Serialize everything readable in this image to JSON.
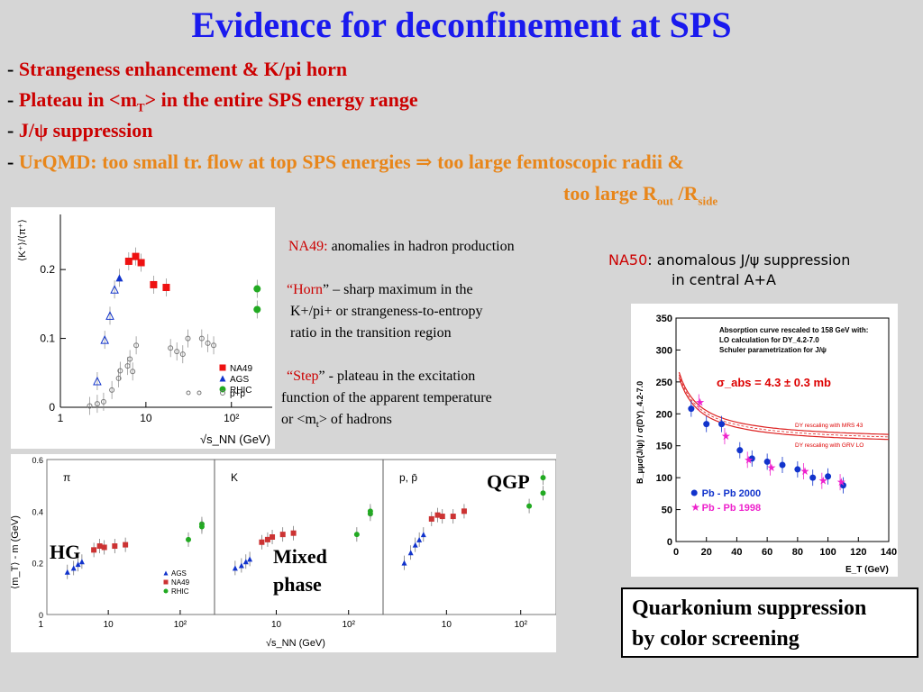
{
  "title": "Evidence for deconfinement at SPS",
  "bullets": {
    "b1_dash": "- ",
    "b1": "Strangeness enhancement & K/pi horn",
    "b2_dash": "- ",
    "b2_pre": "Plateau in <m",
    "b2_sub": "T",
    "b2_post": "> in the entire SPS energy range",
    "b3_dash": "- ",
    "b3": "J/ψ suppression",
    "b4_dash": "- ",
    "b4_pre": "UrQMD: too small tr. flow at top SPS energies ",
    "b4_arrow": "⇒",
    "b4_post": " too large femtoscopic radii &",
    "b5_pre": "too large R",
    "b5_sub1": "out",
    "b5_mid": " /R",
    "b5_sub2": "side"
  },
  "na49_text": {
    "label": "NA49:",
    "rest": " anomalies in hadron production",
    "horn_q": "“Horn",
    "horn_rest": "” – sharp maximum in the",
    "horn_l2": "K+/pi+ or strangeness-to-entropy",
    "horn_l3": "ratio in the transition region",
    "step_q": "“Step",
    "step_rest": "”  -  plateau in the excitation",
    "step_l2": "function of the apparent temperature",
    "step_l3a": "or  <m",
    "step_l3sub": "t",
    "step_l3b": "> of hadrons"
  },
  "na50_text": {
    "label": "NA50",
    "rest": ": anomalous J/ψ suppression",
    "l2": "in central A+A"
  },
  "quarkonium": {
    "l1": "Quarkonium suppression",
    "l2": "by color screening"
  },
  "overlays": {
    "hg": "HG",
    "mixed1": "Mixed",
    "mixed2": "phase",
    "qgp": "QGP"
  },
  "chart_data": [
    {
      "type": "scatter",
      "ylabel": "⟨K⁺⟩/⟨π⁺⟩",
      "xlabel": "√s_NN (GeV)",
      "x_log": true,
      "xlim": [
        1,
        300
      ],
      "ylim": [
        0,
        0.28
      ],
      "xticks": [
        "1",
        "10",
        "10²"
      ],
      "yticks": [
        "0",
        "0.1",
        "0.2"
      ],
      "legend": [
        "NA49",
        "AGS",
        "RHIC",
        "p+p"
      ],
      "series": [
        {
          "name": "NA49",
          "color": "#ee1111",
          "marker": "square",
          "points": [
            [
              6.3,
              0.212
            ],
            [
              7.6,
              0.219
            ],
            [
              8.8,
              0.21
            ],
            [
              12.3,
              0.178
            ],
            [
              17.3,
              0.174
            ]
          ]
        },
        {
          "name": "AGS",
          "color": "#1133cc",
          "marker": "triangle",
          "points": [
            [
              2.7,
              0.038
            ],
            [
              3.3,
              0.098
            ],
            [
              3.8,
              0.133
            ],
            [
              4.3,
              0.171
            ],
            [
              4.9,
              0.188
            ]
          ]
        },
        {
          "name": "RHIC",
          "color": "#22aa22",
          "marker": "circle",
          "points": [
            [
              200,
              0.172
            ],
            [
              200,
              0.142
            ]
          ]
        },
        {
          "name": "p+p",
          "color": "#777777",
          "marker": "open-circle",
          "points": [
            [
              2.2,
              0.002
            ],
            [
              2.7,
              0.005
            ],
            [
              3.2,
              0.008
            ],
            [
              4.0,
              0.025
            ],
            [
              4.8,
              0.042
            ],
            [
              5.0,
              0.053
            ],
            [
              6.1,
              0.06
            ],
            [
              6.5,
              0.07
            ],
            [
              7.0,
              0.052
            ],
            [
              7.7,
              0.09
            ],
            [
              19.4,
              0.086
            ],
            [
              23.0,
              0.081
            ],
            [
              27.0,
              0.077
            ],
            [
              31.0,
              0.1
            ],
            [
              45.0,
              0.1
            ],
            [
              53.0,
              0.093
            ],
            [
              62.0,
              0.09
            ]
          ]
        }
      ]
    },
    {
      "type": "scatter",
      "ylabel": "B_μμσ(J/ψ) / σ(DY)_4.2-7.0",
      "xlabel": "E_T (GeV)",
      "xlim": [
        0,
        140
      ],
      "ylim": [
        0,
        350
      ],
      "xticks": [
        "0",
        "20",
        "40",
        "60",
        "80",
        "100",
        "120",
        "140"
      ],
      "yticks": [
        "0",
        "50",
        "100",
        "150",
        "200",
        "250",
        "300",
        "350"
      ],
      "annotations": [
        "Absorption curve rescaled to 158 GeV with:",
        "LO calculation for DY_4.2-7.0",
        "Schuler parametrization for J/ψ",
        "σ_abs = 4.3 ± 0.3 mb",
        "DY rescaling with MRS 43",
        "DY rescaling with GRV LO"
      ],
      "series": [
        {
          "name": "Pb - Pb  2000",
          "color": "#1133cc",
          "marker": "circle",
          "points": [
            [
              10,
              208
            ],
            [
              20,
              184
            ],
            [
              30,
              184
            ],
            [
              42,
              143
            ],
            [
              50,
              130
            ],
            [
              60,
              125
            ],
            [
              70,
              120
            ],
            [
              80,
              113
            ],
            [
              90,
              100
            ],
            [
              100,
              102
            ],
            [
              110,
              88
            ]
          ]
        },
        {
          "name": "Pb - Pb  1998",
          "color": "#ee22cc",
          "marker": "star",
          "points": [
            [
              15,
              218
            ],
            [
              32,
              165
            ],
            [
              47,
              128
            ],
            [
              62,
              116
            ],
            [
              84,
              110
            ],
            [
              96,
              95
            ],
            [
              108,
              93
            ]
          ]
        }
      ]
    },
    {
      "type": "scatter",
      "ylabel": "⟨m_T⟩ - m (GeV)",
      "xlabel": "√s_NN (GeV)",
      "x_log": true,
      "ylim": [
        0,
        0.6
      ],
      "yticks": [
        "0",
        "0.2",
        "0.4",
        "0.6"
      ],
      "xticks": [
        "1",
        "10",
        "10²"
      ],
      "panels": [
        "π",
        "K",
        "p, p̄"
      ],
      "legend": [
        "AGS",
        "NA49",
        "RHIC"
      ],
      "series": [
        {
          "name": "AGS",
          "color": "#1133cc",
          "marker": "triangle",
          "panels": [
            [
              [
                2.7,
                0.165
              ],
              [
                3.3,
                0.18
              ],
              [
                3.8,
                0.195
              ],
              [
                4.3,
                0.205
              ]
            ],
            [
              [
                2.7,
                0.18
              ],
              [
                3.3,
                0.19
              ],
              [
                3.8,
                0.205
              ],
              [
                4.3,
                0.215
              ]
            ],
            [
              [
                2.7,
                0.2
              ],
              [
                3.3,
                0.24
              ],
              [
                3.8,
                0.27
              ],
              [
                4.3,
                0.29
              ],
              [
                4.9,
                0.31
              ]
            ]
          ]
        },
        {
          "name": "NA49",
          "color": "#cc3333",
          "marker": "square",
          "panels": [
            [
              [
                6.3,
                0.25
              ],
              [
                7.6,
                0.265
              ],
              [
                8.8,
                0.26
              ],
              [
                12.3,
                0.265
              ],
              [
                17.3,
                0.27
              ]
            ],
            [
              [
                6.3,
                0.28
              ],
              [
                7.6,
                0.29
              ],
              [
                8.8,
                0.3
              ],
              [
                12.3,
                0.31
              ],
              [
                17.3,
                0.315
              ]
            ],
            [
              [
                6.3,
                0.37
              ],
              [
                7.6,
                0.385
              ],
              [
                8.8,
                0.38
              ],
              [
                12.3,
                0.38
              ],
              [
                17.3,
                0.4
              ]
            ]
          ]
        },
        {
          "name": "RHIC",
          "color": "#22aa22",
          "marker": "circle",
          "panels": [
            [
              [
                130,
                0.29
              ],
              [
                200,
                0.35
              ],
              [
                200,
                0.34
              ]
            ],
            [
              [
                130,
                0.31
              ],
              [
                200,
                0.39
              ],
              [
                200,
                0.4
              ]
            ],
            [
              [
                130,
                0.42
              ],
              [
                200,
                0.53
              ],
              [
                200,
                0.47
              ]
            ]
          ]
        }
      ]
    }
  ]
}
